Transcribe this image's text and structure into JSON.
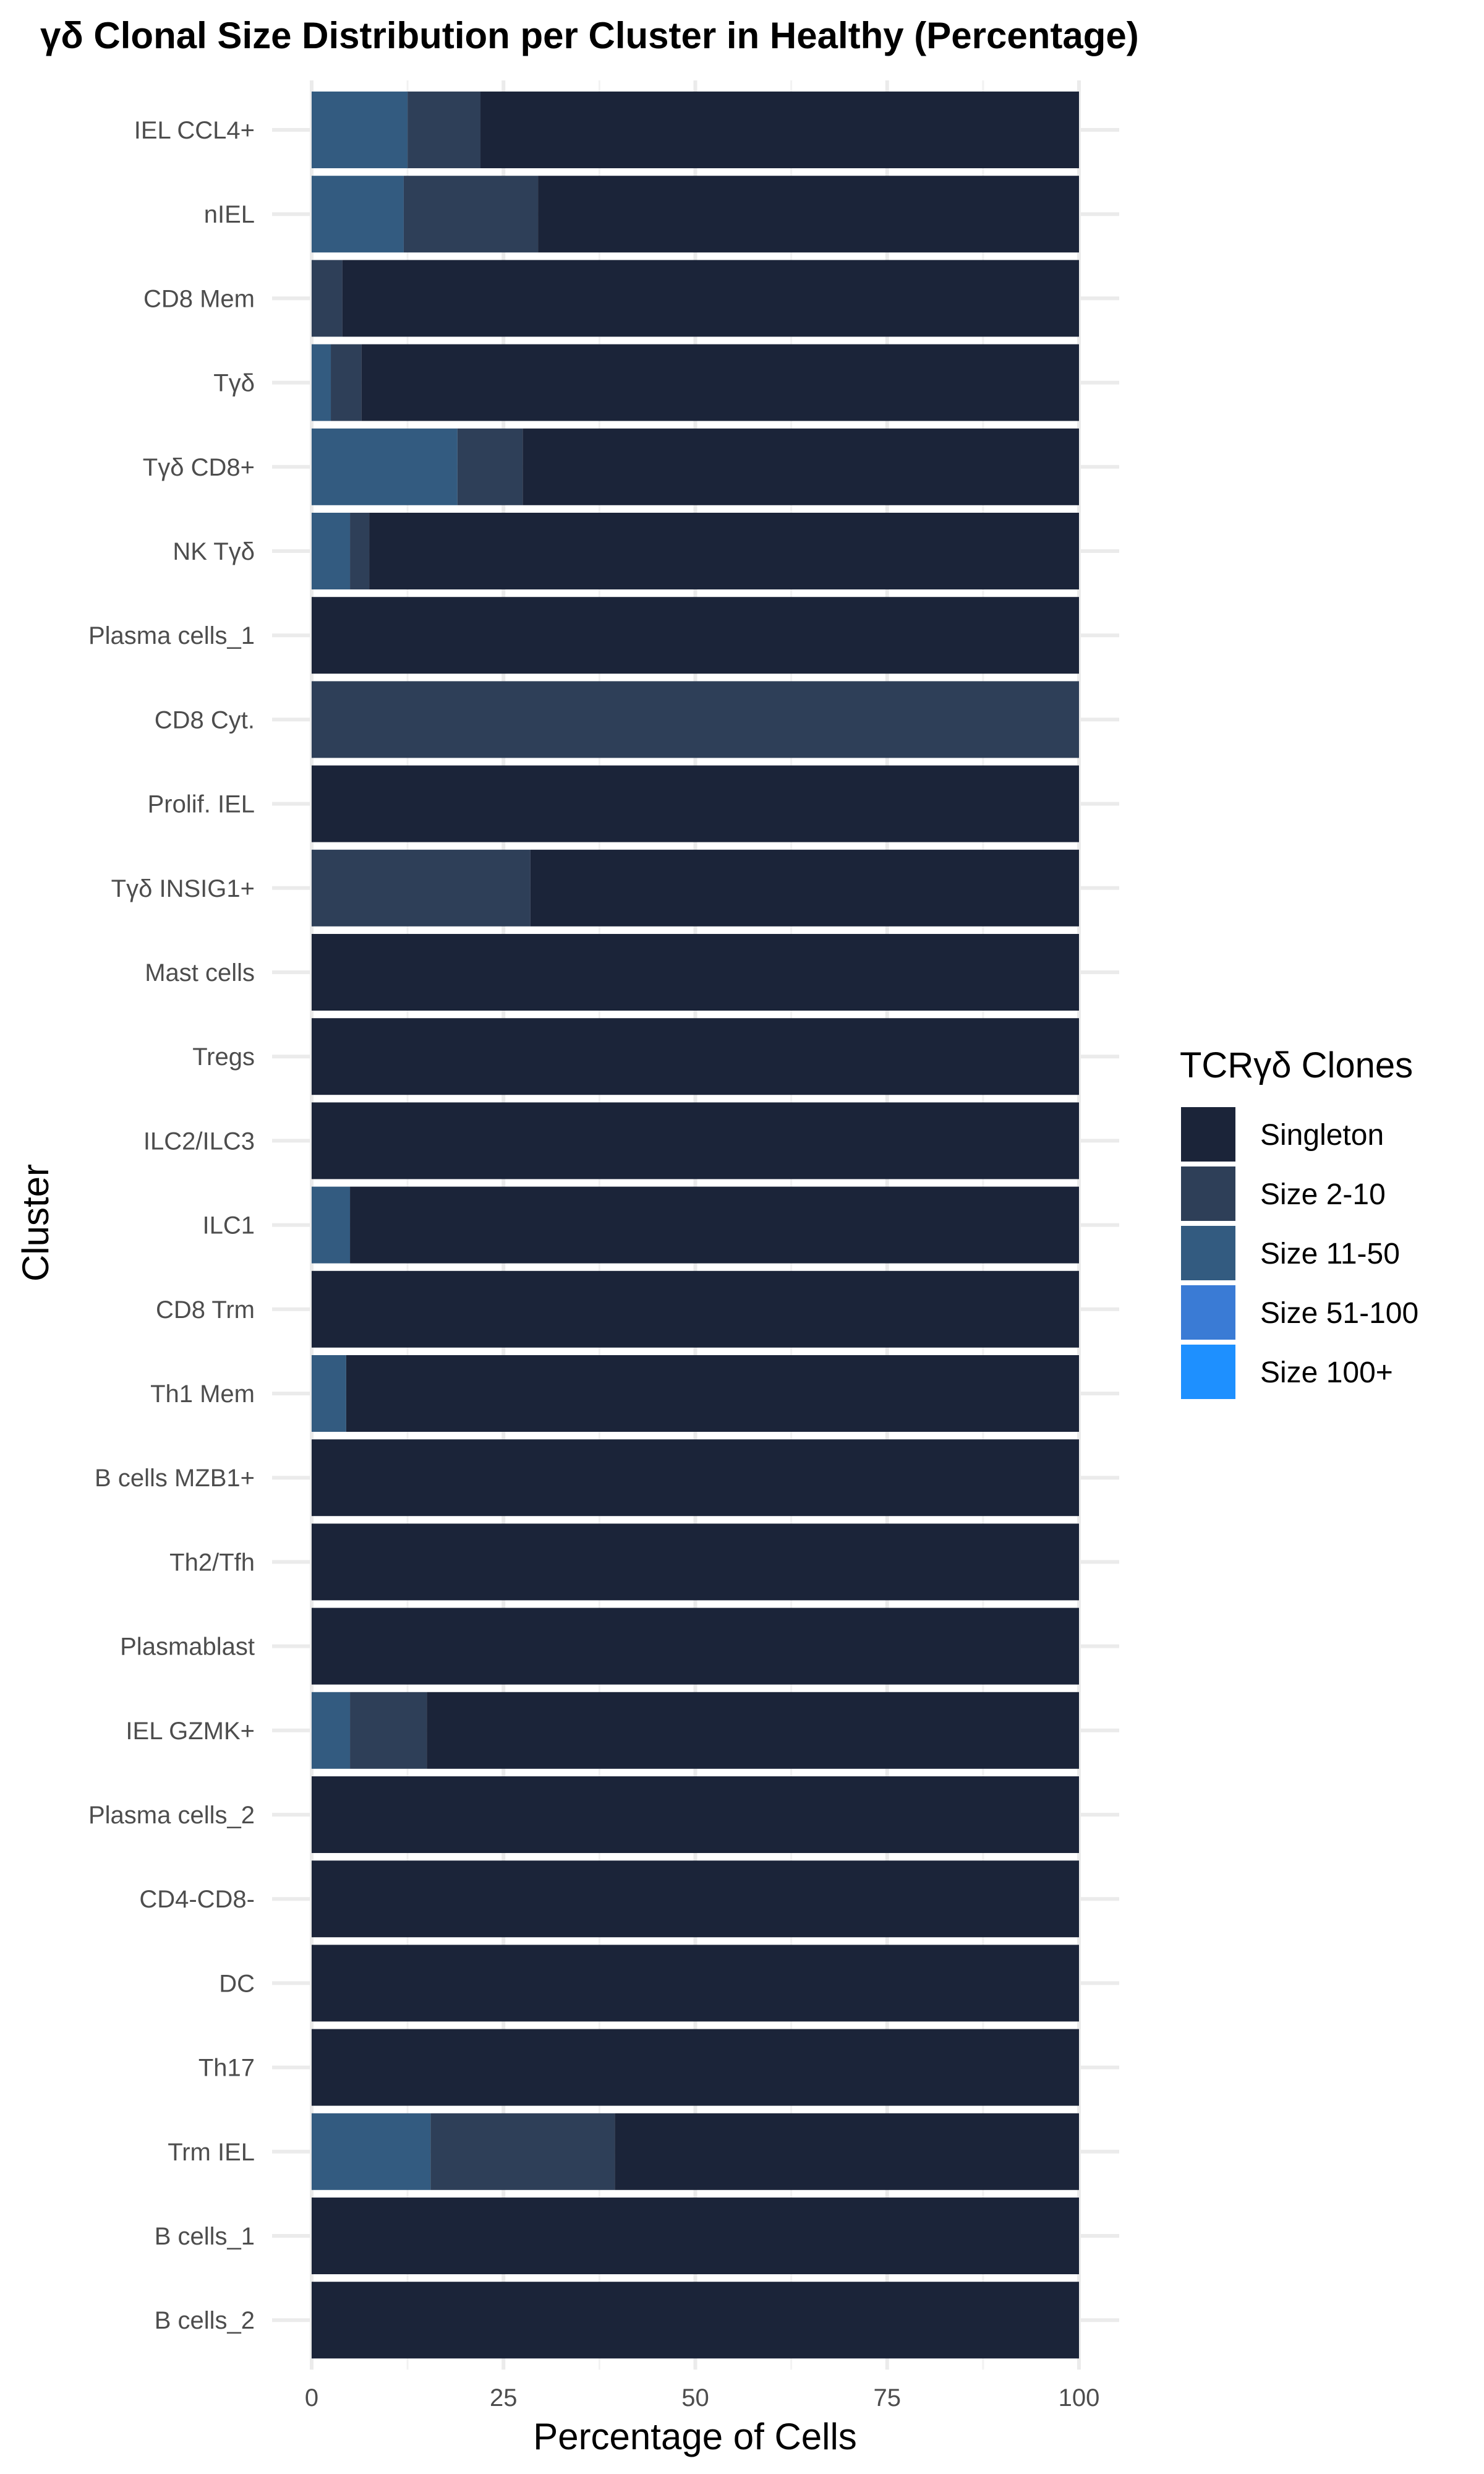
{
  "chart_data": {
    "type": "bar",
    "orientation": "horizontal",
    "stacked": true,
    "title": "γδ Clonal Size Distribution per Cluster in Healthy (Percentage)",
    "xlabel": "Percentage of Cells",
    "ylabel": "Cluster",
    "xlim": [
      0,
      100
    ],
    "xticks": [
      "0",
      "25",
      "50",
      "75",
      "100"
    ],
    "grid": true,
    "legend": {
      "title": "TCRγδ Clones",
      "placement": "right",
      "entries": [
        "Singleton",
        "Size 2-10",
        "Size 11-50",
        "Size 51-100",
        "Size 100+"
      ]
    },
    "colors": {
      "Singleton": "#1b2439",
      "Size 2-10": "#2e3f58",
      "Size 11-50": "#335b80",
      "Size 51-100": "#3a7bd5",
      "Size 100+": "#1e90ff"
    },
    "categories": [
      "IEL CCL4+",
      "nIEL",
      "CD8 Mem",
      "Tγδ",
      "Tγδ CD8+",
      "NK Tγδ",
      "Plasma cells_1",
      "CD8 Cyt.",
      "Prolif. IEL",
      "Tγδ INSIG1+",
      "Mast cells",
      "Tregs",
      "ILC2/ILC3",
      "ILC1",
      "CD8 Trm",
      "Th1 Mem",
      "B cells MZB1+",
      "Th2/Tfh",
      "Plasmablast",
      "IEL GZMK+",
      "Plasma cells_2",
      "CD4-CD8-",
      "DC",
      "Th17",
      "Trm IEL",
      "B cells_1",
      "B cells_2"
    ],
    "series": [
      {
        "name": "Size 11-50",
        "values": [
          12.5,
          12,
          0,
          2.5,
          19,
          5,
          0,
          0,
          0,
          0,
          0,
          0,
          0,
          5,
          0,
          4.5,
          0,
          0,
          0,
          5,
          0,
          0,
          0,
          0,
          15.5,
          0,
          0
        ]
      },
      {
        "name": "Size 2-10",
        "values": [
          9.5,
          17.5,
          4,
          4,
          8.5,
          2.5,
          0,
          100,
          0,
          28.5,
          0,
          0,
          0,
          0,
          0,
          0,
          0,
          0,
          0,
          10,
          0,
          0,
          0,
          0,
          24,
          0,
          0
        ]
      },
      {
        "name": "Singleton",
        "values": [
          78,
          70.5,
          96,
          93.5,
          72.5,
          92.5,
          100,
          0,
          100,
          71.5,
          100,
          100,
          100,
          95,
          100,
          95.5,
          100,
          100,
          100,
          85,
          100,
          100,
          100,
          100,
          60.5,
          100,
          100
        ]
      }
    ]
  }
}
